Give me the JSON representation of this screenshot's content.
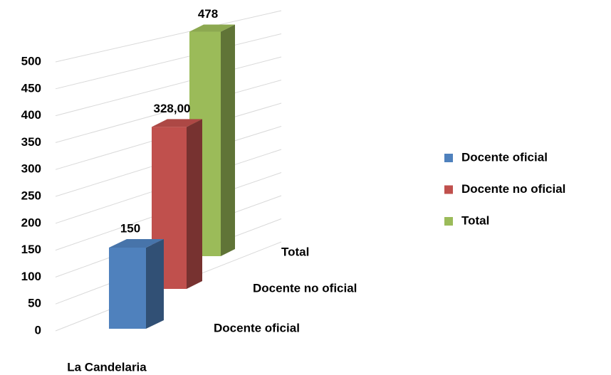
{
  "chart_data": {
    "type": "bar3d",
    "categories": [
      "La Candelaria"
    ],
    "series": [
      {
        "name": "Docente oficial",
        "color": "#4f81bd",
        "values": [
          150
        ],
        "value_labels": [
          "150"
        ]
      },
      {
        "name": "Docente no oficial",
        "color": "#c0504d",
        "values": [
          328
        ],
        "value_labels": [
          "328,00"
        ]
      },
      {
        "name": "Total",
        "color": "#9bbb59",
        "values": [
          478
        ],
        "value_labels": [
          "478"
        ]
      }
    ],
    "ylim": [
      0,
      500
    ],
    "yticks": [
      0,
      50,
      100,
      150,
      200,
      250,
      300,
      350,
      400,
      450,
      500
    ],
    "grid": true,
    "legend": "right"
  }
}
